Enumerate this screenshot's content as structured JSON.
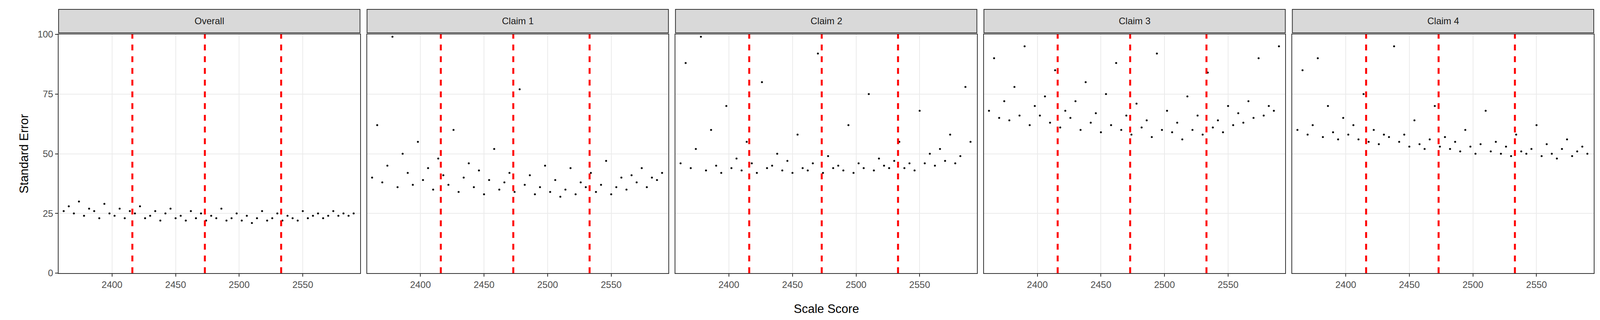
{
  "chart_data": {
    "type": "scatter",
    "x_label": "Scale Score",
    "y_label": "Standard Error",
    "xlim": [
      2358,
      2595
    ],
    "ylim": [
      0,
      100
    ],
    "xticks": [
      2400,
      2450,
      2500,
      2550
    ],
    "yticks": [
      0,
      25,
      50,
      75,
      100
    ],
    "grid": true,
    "color": "#000000",
    "marker": "circle",
    "reference_lines": [
      2416,
      2473,
      2533
    ],
    "reference_line_color": "#ff0000",
    "reference_line_style": "dash",
    "x": [
      2362,
      2366,
      2370,
      2374,
      2378,
      2382,
      2386,
      2390,
      2394,
      2398,
      2402,
      2406,
      2410,
      2414,
      2418,
      2422,
      2426,
      2430,
      2434,
      2438,
      2442,
      2446,
      2450,
      2454,
      2458,
      2462,
      2466,
      2470,
      2474,
      2478,
      2482,
      2486,
      2490,
      2494,
      2498,
      2502,
      2506,
      2510,
      2514,
      2518,
      2522,
      2526,
      2530,
      2534,
      2538,
      2542,
      2546,
      2550,
      2554,
      2558,
      2562,
      2566,
      2570,
      2574,
      2578,
      2582,
      2586,
      2590
    ],
    "panels": [
      {
        "title": "Overall",
        "values": [
          26,
          28,
          25,
          30,
          24,
          27,
          26,
          23,
          29,
          25,
          24,
          27,
          23,
          26,
          25,
          28,
          23,
          24,
          26,
          22,
          25,
          27,
          23,
          24,
          22,
          26,
          23,
          25,
          22,
          24,
          23,
          27,
          22,
          23,
          25,
          22,
          24,
          21,
          23,
          26,
          22,
          23,
          25,
          22,
          24,
          23,
          22,
          26,
          23,
          24,
          25,
          23,
          24,
          26,
          24,
          25,
          24,
          25
        ]
      },
      {
        "title": "Claim 1",
        "values": [
          40,
          62,
          38,
          45,
          99,
          36,
          50,
          42,
          37,
          55,
          39,
          44,
          35,
          48,
          41,
          37,
          60,
          34,
          40,
          46,
          36,
          43,
          33,
          39,
          52,
          35,
          38,
          42,
          34,
          77,
          37,
          41,
          33,
          36,
          45,
          34,
          39,
          32,
          35,
          44,
          33,
          38,
          36,
          42,
          34,
          37,
          47,
          33,
          36,
          40,
          35,
          41,
          38,
          44,
          36,
          40,
          39,
          42
        ]
      },
      {
        "title": "Claim 2",
        "values": [
          46,
          88,
          44,
          52,
          99,
          43,
          60,
          45,
          42,
          70,
          44,
          48,
          43,
          55,
          46,
          42,
          80,
          44,
          45,
          50,
          43,
          47,
          42,
          58,
          44,
          43,
          46,
          92,
          42,
          49,
          44,
          45,
          43,
          62,
          42,
          46,
          44,
          75,
          43,
          48,
          45,
          44,
          47,
          55,
          44,
          46,
          43,
          68,
          46,
          50,
          45,
          52,
          47,
          58,
          46,
          49,
          78,
          55
        ]
      },
      {
        "title": "Claim 3",
        "values": [
          68,
          90,
          65,
          72,
          64,
          78,
          66,
          95,
          62,
          70,
          66,
          74,
          63,
          85,
          61,
          68,
          65,
          72,
          60,
          80,
          63,
          67,
          59,
          75,
          62,
          88,
          60,
          66,
          58,
          71,
          61,
          64,
          57,
          92,
          60,
          68,
          59,
          63,
          56,
          74,
          60,
          66,
          58,
          84,
          61,
          64,
          59,
          70,
          62,
          67,
          63,
          72,
          65,
          90,
          66,
          70,
          68,
          95
        ]
      },
      {
        "title": "Claim 4",
        "values": [
          60,
          85,
          58,
          62,
          90,
          57,
          70,
          59,
          56,
          65,
          58,
          62,
          56,
          75,
          55,
          60,
          54,
          58,
          57,
          95,
          55,
          58,
          53,
          64,
          54,
          52,
          56,
          70,
          53,
          57,
          52,
          55,
          51,
          60,
          53,
          50,
          54,
          68,
          51,
          55,
          50,
          53,
          49,
          58,
          51,
          50,
          52,
          62,
          49,
          54,
          50,
          48,
          52,
          56,
          49,
          51,
          53,
          50
        ]
      }
    ]
  }
}
